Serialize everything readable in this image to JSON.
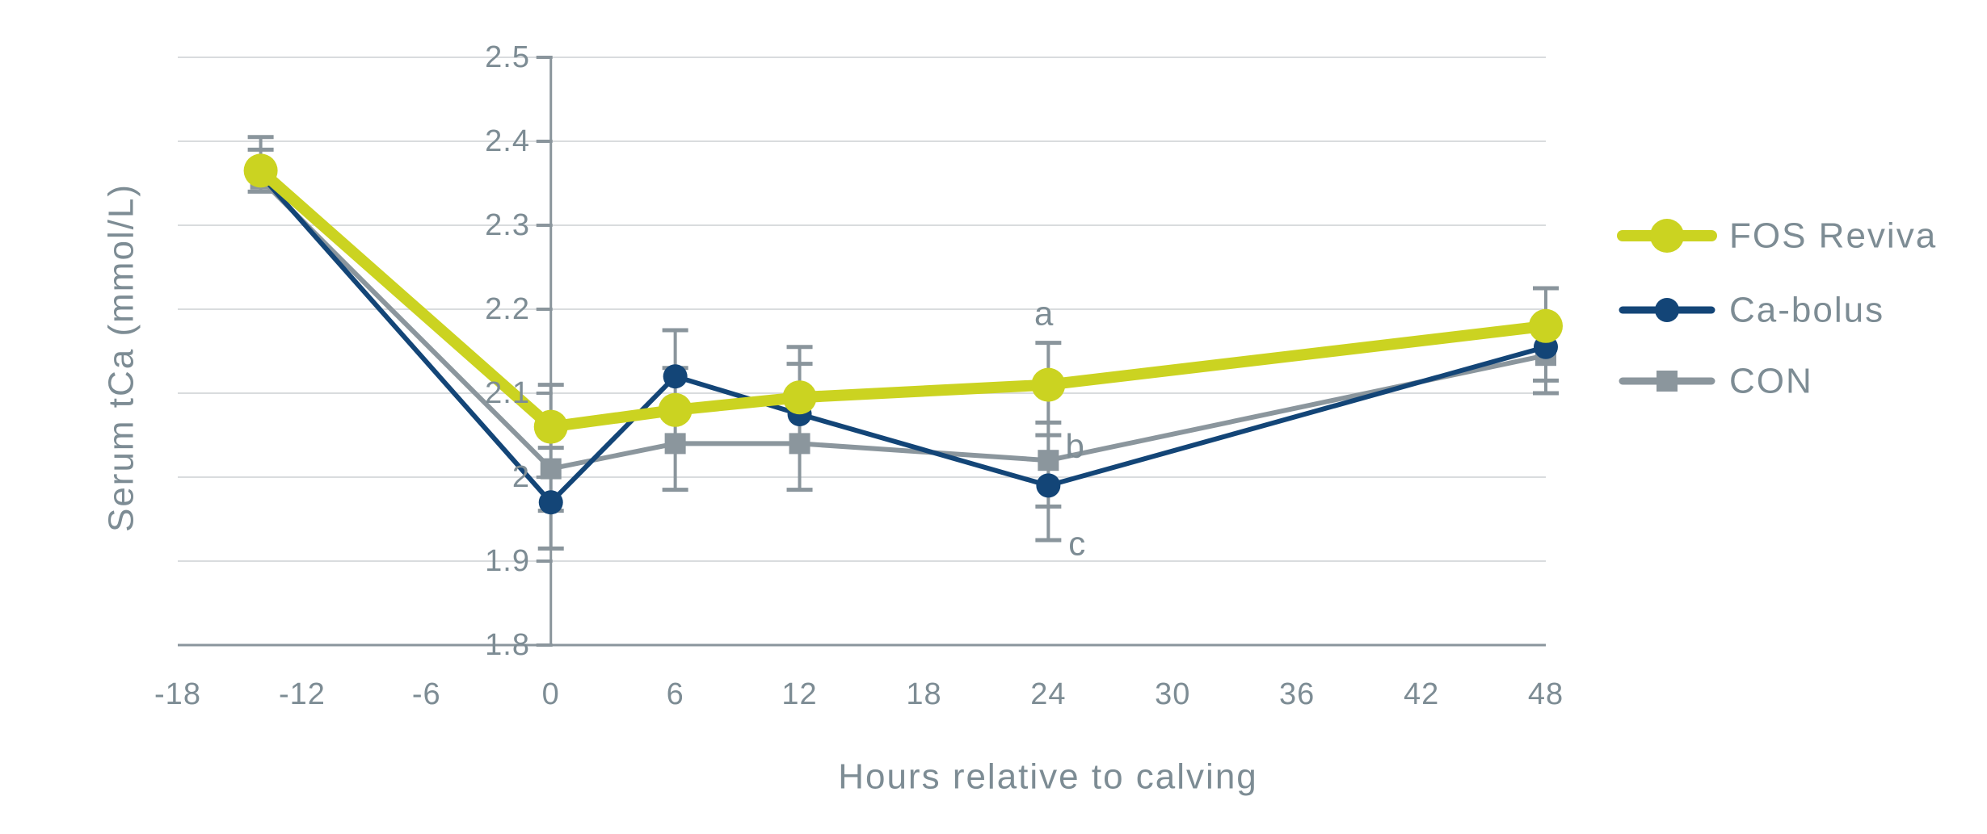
{
  "chart_data": {
    "type": "line",
    "title": "",
    "xlabel": "Hours relative to calving",
    "ylabel": "Serum tCa (mmol/L)",
    "xlim": [
      -18,
      48
    ],
    "ylim": [
      1.8,
      2.5
    ],
    "grid": "horizontal-only",
    "legend_position": "right",
    "x": [
      -14,
      0,
      6,
      12,
      24,
      48
    ],
    "x_tick_values": [
      -18,
      -12,
      -6,
      0,
      6,
      12,
      18,
      24,
      30,
      36,
      42,
      48
    ],
    "x_tick_labels": [
      "-18",
      "-12",
      "-6",
      "0",
      "6",
      "12",
      "18",
      "24",
      "30",
      "36",
      "42",
      "48"
    ],
    "y_tick_values": [
      2.5,
      2.4,
      2.3,
      2.2,
      2.1,
      2.0,
      1.9,
      1.8
    ],
    "y_tick_labels": [
      "2.5",
      "2.4",
      "2.3",
      "2.2",
      "2.1",
      "2",
      "1.9",
      "1.8"
    ],
    "series": [
      {
        "name": "FOS Reviva",
        "color": "#cbd321",
        "marker": "circle",
        "marker_size": 21,
        "line_width": 14,
        "z": 3,
        "values": [
          2.365,
          2.06,
          2.08,
          2.095,
          2.11,
          2.18
        ]
      },
      {
        "name": "Ca-bolus",
        "color": "#134577",
        "marker": "circle",
        "marker_size": 15,
        "line_width": 6,
        "z": 2,
        "values": [
          2.36,
          1.97,
          2.12,
          2.075,
          1.99,
          2.155
        ]
      },
      {
        "name": "CON",
        "color": "#8b969d",
        "marker": "square",
        "marker_size": 13,
        "line_width": 6,
        "z": 1,
        "values": [
          2.355,
          2.01,
          2.04,
          2.04,
          2.02,
          2.145
        ]
      }
    ],
    "error_bars": [
      {
        "x": -14,
        "lo": 2.34,
        "hi": 2.405,
        "caps": [
          2.405,
          2.39,
          2.34
        ]
      },
      {
        "x": 0,
        "lo": 1.915,
        "hi": 2.11,
        "caps": [
          2.11,
          2.035,
          1.96,
          1.915
        ]
      },
      {
        "x": 6,
        "lo": 1.985,
        "hi": 2.175,
        "caps": [
          2.175,
          2.13,
          1.985
        ]
      },
      {
        "x": 12,
        "lo": 1.985,
        "hi": 2.155,
        "caps": [
          2.155,
          2.135,
          1.985
        ]
      },
      {
        "x": 24,
        "lo": 1.925,
        "hi": 2.16,
        "caps": [
          2.16,
          2.065,
          2.05,
          1.965,
          1.925
        ]
      },
      {
        "x": 48,
        "lo": 2.1,
        "hi": 2.225,
        "caps": [
          2.225,
          2.115,
          2.1
        ]
      }
    ],
    "annotations": [
      {
        "text": "a",
        "x": 23.8,
        "y": 2.195
      },
      {
        "text": "b",
        "x": 25.3,
        "y": 2.037
      },
      {
        "text": "c",
        "x": 25.4,
        "y": 1.921
      }
    ]
  },
  "colors": {
    "fos_reviva": "#cbd321",
    "ca_bolus": "#134577",
    "con": "#8b969d",
    "grid": "#d9dcde",
    "axis": "#8a959c",
    "text": "#7d8c94"
  }
}
